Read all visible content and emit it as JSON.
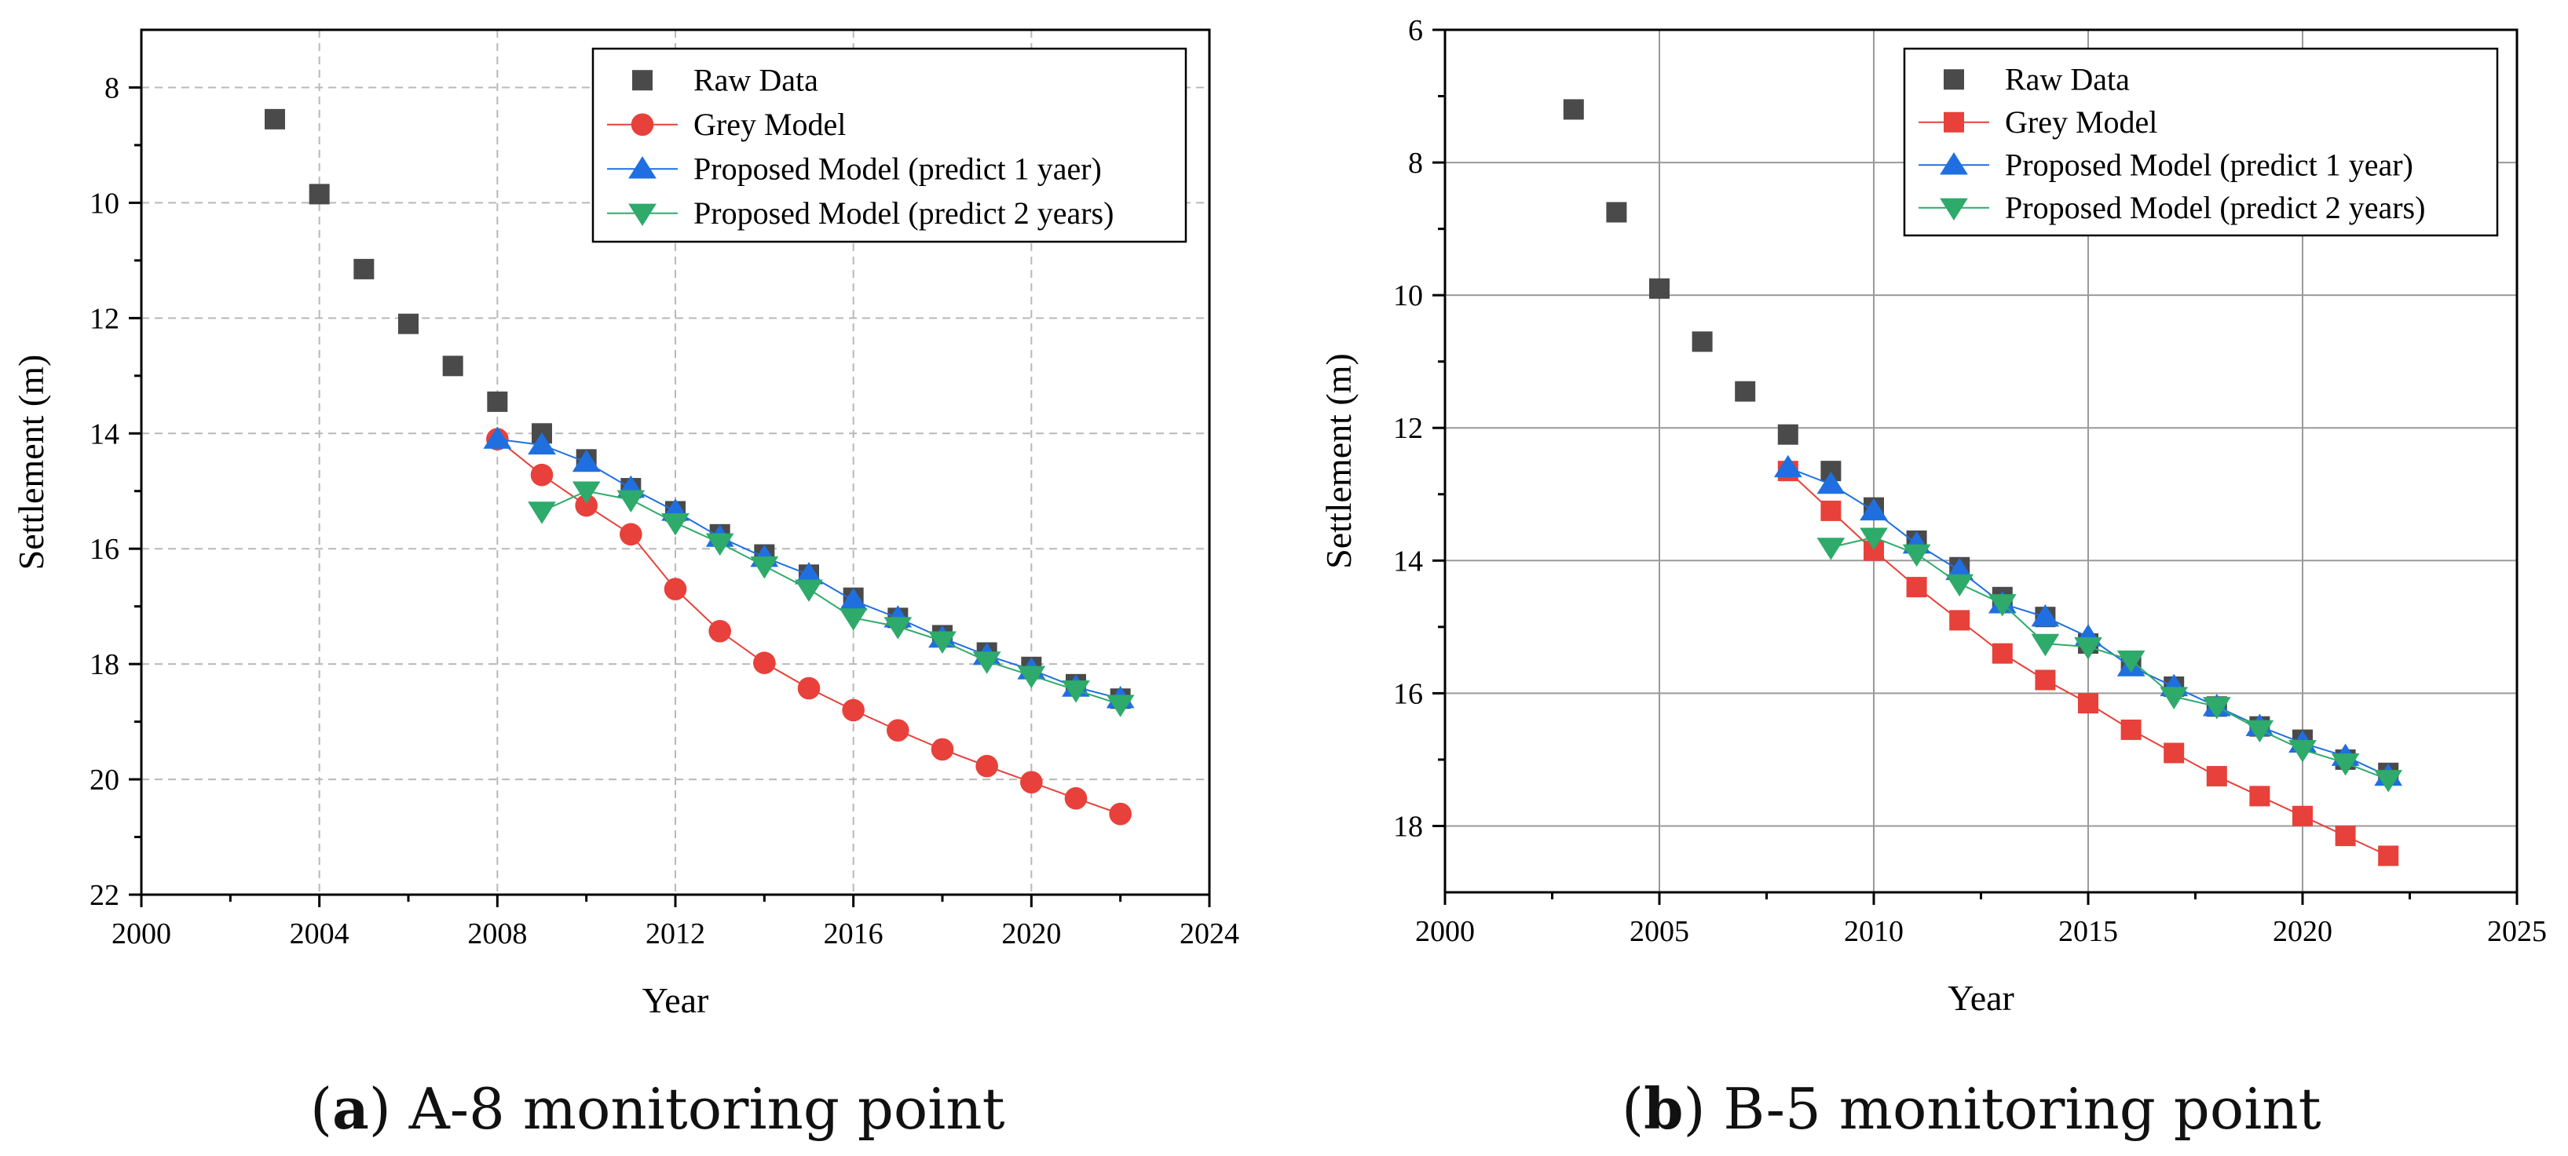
{
  "chart_data": [
    {
      "type": "scatter",
      "xlabel": "Year",
      "ylabel": "Settlement (m)",
      "xlim": [
        2000,
        2024
      ],
      "ylim": [
        22,
        7
      ],
      "y_inverted": true,
      "xticks": [
        2000,
        2004,
        2008,
        2012,
        2016,
        2020,
        2024
      ],
      "yticks": [
        8,
        10,
        12,
        14,
        16,
        18,
        20,
        22
      ],
      "grid": "dashed",
      "legend_position": "top-right",
      "caption": {
        "label": "a",
        "text": " A-8 monitoring point"
      },
      "series": [
        {
          "name": "Raw Data",
          "marker": "square",
          "line": false,
          "color": "#4a4a4a",
          "x": [
            2003,
            2004,
            2005,
            2006,
            2007,
            2008,
            2009,
            2010,
            2011,
            2012,
            2013,
            2014,
            2015,
            2016,
            2017,
            2018,
            2019,
            2020,
            2021,
            2022
          ],
          "y": [
            8.55,
            9.85,
            11.15,
            12.1,
            12.83,
            13.45,
            14.0,
            14.45,
            14.95,
            15.35,
            15.75,
            16.1,
            16.45,
            16.85,
            17.2,
            17.5,
            17.8,
            18.05,
            18.35,
            18.6
          ]
        },
        {
          "name": "Grey Model",
          "marker": "circle",
          "line": true,
          "color": "#e8403a",
          "x": [
            2008,
            2009,
            2010,
            2011,
            2012,
            2013,
            2014,
            2015,
            2016,
            2017,
            2018,
            2019,
            2020,
            2021,
            2022
          ],
          "y": [
            14.1,
            14.72,
            15.25,
            15.75,
            16.7,
            17.43,
            17.98,
            18.42,
            18.8,
            19.15,
            19.48,
            19.77,
            20.05,
            20.33,
            20.6
          ]
        },
        {
          "name": "Proposed Model (predict 1 yaer)",
          "marker": "triangle-up",
          "line": true,
          "color": "#1f6fe0",
          "x": [
            2008,
            2009,
            2010,
            2011,
            2012,
            2013,
            2014,
            2015,
            2016,
            2017,
            2018,
            2019,
            2020,
            2021,
            2022
          ],
          "y": [
            14.1,
            14.2,
            14.5,
            14.95,
            15.35,
            15.8,
            16.15,
            16.45,
            16.9,
            17.2,
            17.55,
            17.85,
            18.1,
            18.4,
            18.6
          ]
        },
        {
          "name": "Proposed Model (predict 2 years)",
          "marker": "triangle-down",
          "line": true,
          "color": "#2eaa6a",
          "x": [
            2009,
            2010,
            2011,
            2012,
            2013,
            2014,
            2015,
            2016,
            2017,
            2018,
            2019,
            2020,
            2021,
            2022
          ],
          "y": [
            15.35,
            15.0,
            15.15,
            15.55,
            15.9,
            16.3,
            16.7,
            17.2,
            17.35,
            17.6,
            17.95,
            18.2,
            18.45,
            18.7
          ]
        }
      ]
    },
    {
      "type": "scatter",
      "xlabel": "Year",
      "ylabel": "Settlement (m)",
      "xlim": [
        2000,
        2025
      ],
      "ylim": [
        19,
        6
      ],
      "y_inverted": true,
      "xticks": [
        2000,
        2005,
        2010,
        2015,
        2020,
        2025
      ],
      "yticks": [
        6,
        8,
        10,
        12,
        14,
        16,
        18
      ],
      "grid": "solid",
      "legend_position": "top-right",
      "caption": {
        "label": "b",
        "text": " B-5 monitoring point"
      },
      "series": [
        {
          "name": "Raw Data",
          "marker": "square",
          "line": false,
          "color": "#4a4a4a",
          "x": [
            2003,
            2004,
            2005,
            2006,
            2007,
            2008,
            2009,
            2010,
            2011,
            2012,
            2013,
            2014,
            2015,
            2016,
            2017,
            2018,
            2019,
            2020,
            2021,
            2022
          ],
          "y": [
            7.2,
            8.75,
            9.9,
            10.7,
            11.45,
            12.1,
            12.65,
            13.2,
            13.7,
            14.1,
            14.55,
            14.85,
            15.25,
            15.55,
            15.9,
            16.2,
            16.5,
            16.7,
            17.0,
            17.2
          ]
        },
        {
          "name": "Grey Model",
          "marker": "square",
          "line": true,
          "color": "#e8403a",
          "x": [
            2008,
            2009,
            2010,
            2011,
            2012,
            2013,
            2014,
            2015,
            2016,
            2017,
            2018,
            2019,
            2020,
            2021,
            2022
          ],
          "y": [
            12.65,
            13.25,
            13.85,
            14.4,
            14.9,
            15.4,
            15.8,
            16.15,
            16.55,
            16.9,
            17.25,
            17.55,
            17.85,
            18.15,
            18.45
          ]
        },
        {
          "name": "Proposed Model (predict 1 year)",
          "marker": "triangle-up",
          "line": true,
          "color": "#1f6fe0",
          "x": [
            2008,
            2009,
            2010,
            2011,
            2012,
            2013,
            2014,
            2015,
            2016,
            2017,
            2018,
            2019,
            2020,
            2021,
            2022
          ],
          "y": [
            12.6,
            12.85,
            13.25,
            13.75,
            14.15,
            14.65,
            14.85,
            15.15,
            15.6,
            15.9,
            16.2,
            16.5,
            16.75,
            16.95,
            17.25
          ]
        },
        {
          "name": "Proposed Model (predict 2 years)",
          "marker": "triangle-down",
          "line": true,
          "color": "#2eaa6a",
          "x": [
            2009,
            2010,
            2011,
            2012,
            2013,
            2014,
            2015,
            2016,
            2017,
            2018,
            2019,
            2020,
            2021,
            2022
          ],
          "y": [
            13.8,
            13.65,
            13.9,
            14.35,
            14.65,
            15.25,
            15.3,
            15.5,
            16.05,
            16.2,
            16.55,
            16.85,
            17.05,
            17.3
          ]
        }
      ]
    }
  ]
}
